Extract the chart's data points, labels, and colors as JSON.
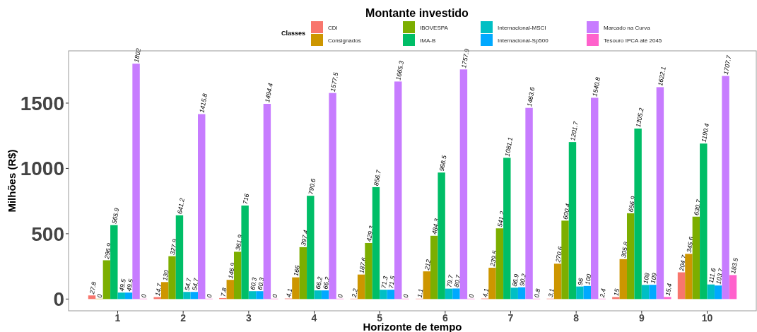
{
  "chart_data": {
    "type": "bar",
    "title": "Montante investido",
    "legend_title": "Classes",
    "xlabel": "Horizonte de tempo",
    "ylabel": "Milhões (R$)",
    "categories": [
      "1",
      "2",
      "3",
      "4",
      "5",
      "6",
      "7",
      "8",
      "9",
      "10"
    ],
    "series": [
      {
        "name": "CDI",
        "color": "#f8766d",
        "values": [
          27.8,
          14.7,
          7.8,
          4.1,
          2.2,
          1.1,
          4.1,
          3.1,
          15,
          204.7
        ]
      },
      {
        "name": "Consignados",
        "color": "#cd9600",
        "values": [
          0,
          130,
          146.9,
          166,
          187.6,
          212,
          239.5,
          270.6,
          305.8,
          345.6
        ]
      },
      {
        "name": "IBOVESPA",
        "color": "#7cae00",
        "values": [
          296.9,
          327.9,
          361.9,
          397.4,
          429.3,
          484.3,
          541.2,
          600.4,
          656.9,
          630.7
        ]
      },
      {
        "name": "IMA-B",
        "color": "#00be67",
        "values": [
          565.9,
          641.2,
          716,
          790.6,
          856.7,
          968.5,
          1081.1,
          1201.7,
          1305.2,
          1190.4
        ]
      },
      {
        "name": "Internacional-MSCI",
        "color": "#00bfc4",
        "values": [
          49.5,
          54.7,
          60.3,
          66.2,
          71.3,
          79.7,
          86.9,
          96,
          108,
          111.6
        ]
      },
      {
        "name": "Internacional-Sp500",
        "color": "#00a9ff",
        "values": [
          49.5,
          54.7,
          60.3,
          66.2,
          71.5,
          80.7,
          90.2,
          100,
          109,
          103.7
        ]
      },
      {
        "name": "Marcado na Curva",
        "color": "#c77cff",
        "values": [
          1802,
          1415.8,
          1494.4,
          1577.5,
          1665.3,
          1757.9,
          1463.6,
          1540.8,
          1622.1,
          1707.7
        ]
      },
      {
        "name": "Tesouro IPCA até 2045",
        "color": "#ff61cc",
        "values": [
          0,
          0,
          0,
          0,
          0,
          0,
          0.8,
          2.4,
          15.4,
          183.5
        ]
      }
    ],
    "ylim": [
      -90,
      1900
    ],
    "yticks": [
      0,
      500,
      1000,
      1500
    ],
    "data_labels": true,
    "legend": "top",
    "grid": false
  }
}
